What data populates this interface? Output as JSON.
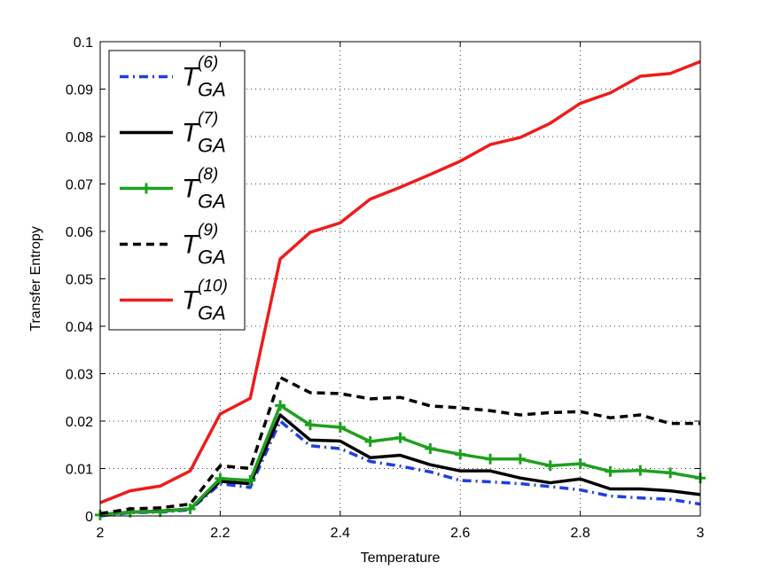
{
  "chart_data": {
    "type": "line",
    "xlabel": "Temperature",
    "ylabel": "Transfer Entropy",
    "xlim": [
      2,
      3
    ],
    "ylim": [
      0,
      0.1
    ],
    "x_ticks": [
      "2",
      "2.2",
      "2.4",
      "2.6",
      "2.8",
      "3"
    ],
    "y_ticks": [
      "0",
      "0.01",
      "0.02",
      "0.03",
      "0.04",
      "0.05",
      "0.06",
      "0.07",
      "0.08",
      "0.09",
      "0.1"
    ],
    "grid": true,
    "legend_position": "top-left",
    "x": [
      2.0,
      2.05,
      2.1,
      2.15,
      2.2,
      2.25,
      2.3,
      2.35,
      2.4,
      2.45,
      2.5,
      2.55,
      2.6,
      2.65,
      2.7,
      2.75,
      2.8,
      2.85,
      2.9,
      2.95,
      3.0
    ],
    "series": [
      {
        "name": "T",
        "sup": "(6)",
        "sub": "GA",
        "color": "#1f3fe0",
        "style": "dashdot",
        "marker": "none",
        "values": [
          0.0,
          0.0007,
          0.0008,
          0.0013,
          0.0068,
          0.006,
          0.02,
          0.0148,
          0.0142,
          0.0115,
          0.0105,
          0.0093,
          0.0075,
          0.0072,
          0.0068,
          0.0062,
          0.0055,
          0.0042,
          0.0038,
          0.0035,
          0.0025
        ]
      },
      {
        "name": "T",
        "sup": "(7)",
        "sub": "GA",
        "color": "#000000",
        "style": "solid",
        "marker": "none",
        "values": [
          0.0003,
          0.0008,
          0.001,
          0.0015,
          0.0073,
          0.0068,
          0.0213,
          0.016,
          0.0158,
          0.0123,
          0.0128,
          0.0108,
          0.0095,
          0.0095,
          0.008,
          0.007,
          0.0078,
          0.0057,
          0.0057,
          0.0053,
          0.0045
        ]
      },
      {
        "name": "T",
        "sup": "(8)",
        "sub": "GA",
        "color": "#1fa01f",
        "style": "solid",
        "marker": "plus",
        "values": [
          0.0002,
          0.0008,
          0.0009,
          0.0015,
          0.0079,
          0.0075,
          0.0233,
          0.0192,
          0.0187,
          0.0157,
          0.0165,
          0.0142,
          0.013,
          0.012,
          0.012,
          0.0106,
          0.011,
          0.0094,
          0.0096,
          0.0091,
          0.008
        ]
      },
      {
        "name": "T",
        "sup": "(9)",
        "sub": "GA",
        "color": "#000000",
        "style": "dashed",
        "marker": "none",
        "values": [
          0.0005,
          0.0015,
          0.0017,
          0.0025,
          0.0106,
          0.01,
          0.0292,
          0.026,
          0.0258,
          0.0247,
          0.025,
          0.0232,
          0.0228,
          0.0222,
          0.0213,
          0.0218,
          0.022,
          0.0207,
          0.0213,
          0.0195,
          0.0195
        ]
      },
      {
        "name": "T",
        "sup": "(10)",
        "sub": "GA",
        "color": "#ee1c1c",
        "style": "solid",
        "marker": "none",
        "values": [
          0.0028,
          0.0053,
          0.0063,
          0.0095,
          0.0215,
          0.0248,
          0.0542,
          0.0598,
          0.0618,
          0.0668,
          0.0693,
          0.072,
          0.0748,
          0.0783,
          0.0798,
          0.0828,
          0.087,
          0.0892,
          0.0927,
          0.0933,
          0.0958
        ]
      }
    ]
  }
}
